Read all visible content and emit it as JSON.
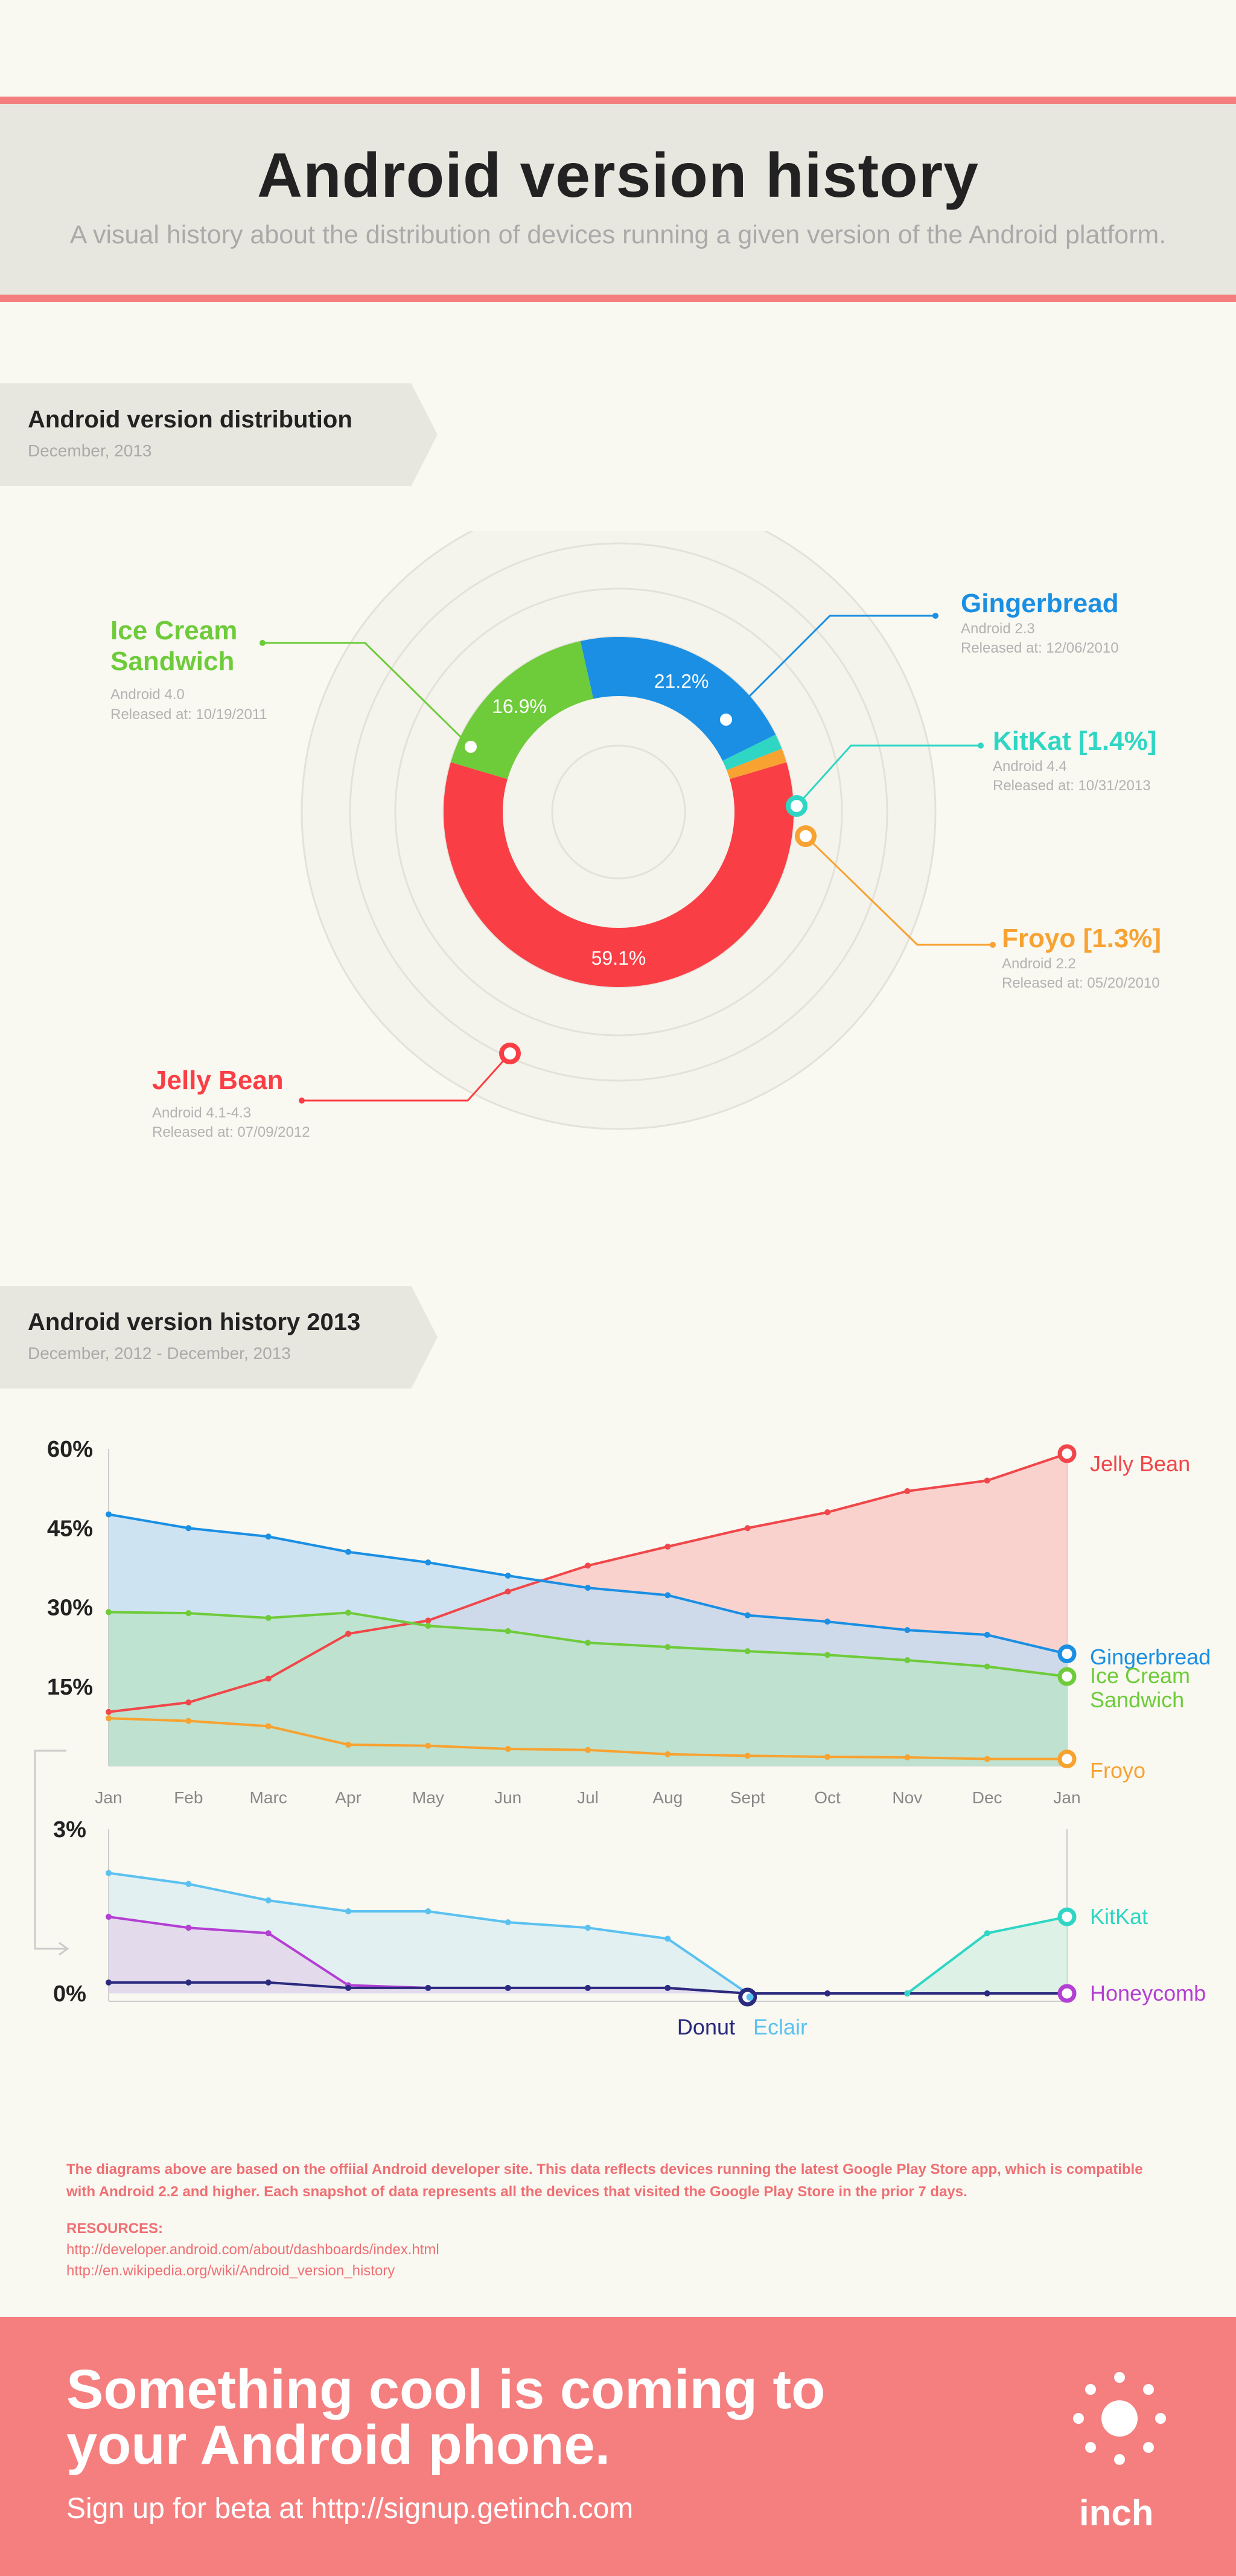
{
  "header": {
    "title": "Android version history",
    "subtitle": "A visual history about the distribution of devices running a given version of the Android platform."
  },
  "section1": {
    "title": "Android version distribution",
    "date": "December, 2013"
  },
  "section2": {
    "title": "Android version history 2013",
    "date": "December, 2012 - December, 2013"
  },
  "labels": {
    "gingerbread": {
      "name": "Gingerbread",
      "version": "Android 2.3",
      "released": "Released at: 12/06/2010"
    },
    "kitkat": {
      "name": "KitKat [1.4%]",
      "version": "Android 4.4",
      "released": "Released at: 10/31/2013"
    },
    "froyo": {
      "name": "Froyo [1.3%]",
      "version": "Android 2.2",
      "released": "Released at: 05/20/2010"
    },
    "ics": {
      "name_line1": "Ice Cream",
      "name_line2": "Sandwich",
      "version": "Android 4.0",
      "released": "Released at: 10/19/2011"
    },
    "jellybean": {
      "name": "Jelly Bean",
      "version": "Android 4.1-4.3",
      "released": "Released at: 07/09/2012"
    }
  },
  "chart_data": [
    {
      "type": "pie",
      "title": "Android version distribution",
      "slices": [
        {
          "name": "Gingerbread",
          "value": 21.2,
          "label": "21.2%",
          "color": "#1a8fe3"
        },
        {
          "name": "KitKat",
          "value": 1.4,
          "label": "",
          "color": "#2fd6c3"
        },
        {
          "name": "Froyo",
          "value": 1.3,
          "label": "",
          "color": "#f7a231"
        },
        {
          "name": "Jelly Bean",
          "value": 59.1,
          "label": "59.1%",
          "color": "#fa3e45"
        },
        {
          "name": "Ice Cream Sandwich",
          "value": 16.9,
          "label": "16.9%",
          "color": "#6ecb3a"
        }
      ]
    },
    {
      "type": "area",
      "title": "Android version history 2013",
      "categories": [
        "Jan",
        "Feb",
        "Marc",
        "Apr",
        "May",
        "Jun",
        "Jul",
        "Aug",
        "Sept",
        "Oct",
        "Nov",
        "Dec",
        "Jan"
      ],
      "y_ticks": [
        "60%",
        "45%",
        "30%",
        "15%"
      ],
      "ylim": [
        0,
        60
      ],
      "series": [
        {
          "name": "Jelly Bean",
          "color": "#f0474a",
          "fill": "#f8c6c2",
          "values": [
            10.2,
            12.0,
            16.5,
            25.0,
            27.5,
            33.0,
            37.9,
            41.5,
            45.0,
            48.0,
            52.0,
            54.0,
            59.1
          ]
        },
        {
          "name": "Gingerbread",
          "color": "#1a8fe3",
          "fill": "#bfdcf1",
          "values": [
            47.6,
            45.0,
            43.4,
            40.5,
            38.5,
            36.0,
            33.7,
            32.3,
            28.5,
            27.3,
            25.7,
            24.8,
            21.2
          ]
        },
        {
          "name_line1": "Ice Cream",
          "name_line2": "Sandwich",
          "name": "Ice Cream Sandwich",
          "color": "#6ecb3a",
          "fill": "#b9e3c5",
          "values": [
            29.1,
            28.9,
            28.0,
            29.0,
            26.5,
            25.5,
            23.3,
            22.5,
            21.7,
            21.0,
            20.0,
            18.8,
            16.9
          ]
        },
        {
          "name": "Froyo",
          "color": "#f7a231",
          "fill": "none",
          "values": [
            9.0,
            8.5,
            7.5,
            4.0,
            3.8,
            3.2,
            3.0,
            2.2,
            1.9,
            1.7,
            1.6,
            1.3,
            1.3
          ]
        }
      ]
    },
    {
      "type": "area",
      "title": "",
      "categories": [
        "Jan",
        "Feb",
        "Marc",
        "Apr",
        "May",
        "Jun",
        "Jul",
        "Aug",
        "Sept",
        "Oct",
        "Nov",
        "Dec",
        "Jan"
      ],
      "y_ticks": [
        "3%",
        "0%"
      ],
      "ylim": [
        0,
        3
      ],
      "bottom_labels": [
        "Donut",
        "Eclair"
      ],
      "series": [
        {
          "name": "Eclair",
          "color": "#5bc1f0",
          "fill": "#dcedf3",
          "values": [
            2.2,
            2.0,
            1.7,
            1.5,
            1.5,
            1.3,
            1.2,
            1.0,
            0.0,
            0.0,
            0.0,
            0.0,
            0.0
          ]
        },
        {
          "name": "Honeycomb",
          "color": "#b33fd3",
          "fill": "#e3d6ea",
          "values": [
            1.4,
            1.2,
            1.1,
            0.15,
            0.1,
            0.1,
            0.1,
            0.1,
            0.0,
            0.0,
            0.0,
            0.0,
            0.0
          ]
        },
        {
          "name": "Donut",
          "color": "#2a2a7e",
          "fill": "none",
          "values": [
            0.2,
            0.2,
            0.2,
            0.1,
            0.1,
            0.1,
            0.1,
            0.1,
            0.0,
            0.0,
            0.0,
            0.0,
            0.0
          ]
        },
        {
          "name": "KitKat",
          "color": "#2fd6c3",
          "fill": "#d6efe4",
          "values": [
            null,
            null,
            null,
            null,
            null,
            null,
            null,
            null,
            null,
            null,
            0.0,
            1.1,
            1.4
          ]
        }
      ]
    }
  ],
  "footer": {
    "note": "The  diagrams above are based on the offiial Android developer site. This data reflects devices running the latest Google Play Store app, which is compatible with Android 2.2 and higher. Each snapshot of data represents all the devices that visited the Google Play Store in the prior 7 days.",
    "resources_title": "RESOURCES:",
    "links": [
      "http://developer.android.com/about/dashboards/index.html",
      "http://en.wikipedia.org/wiki/Android_version_history"
    ]
  },
  "cta": {
    "line1": "Something cool is coming to",
    "line2": "your Android phone.",
    "signup_prefix": "Sign up for beta at ",
    "signup_url": "http://signup.getinch.com",
    "brand": "inch"
  }
}
